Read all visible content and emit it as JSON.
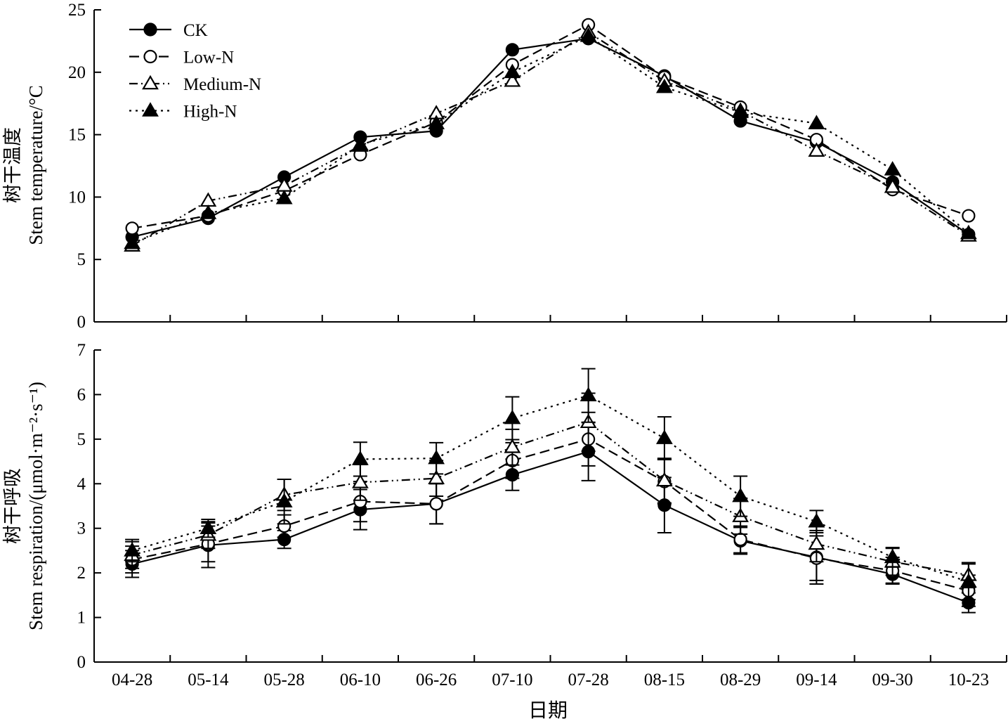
{
  "chart_data": [
    {
      "type": "line",
      "ylabel_cn": "树干温度",
      "ylabel": "Stem temperature/°C",
      "ylim": [
        0,
        25
      ],
      "yticks": [
        0,
        5,
        10,
        15,
        20,
        25
      ],
      "categories": [
        "04-28",
        "05-14",
        "05-28",
        "06-10",
        "06-26",
        "07-10",
        "07-28",
        "08-15",
        "08-29",
        "09-14",
        "09-30",
        "10-23"
      ],
      "legend_position": "top-left",
      "series": [
        {
          "name": "CK",
          "values": [
            6.8,
            8.3,
            11.6,
            14.8,
            15.3,
            21.8,
            22.7,
            19.7,
            16.1,
            14.4,
            11.2,
            7.0
          ]
        },
        {
          "name": "Low-N",
          "values": [
            7.5,
            8.5,
            10.5,
            13.4,
            16.0,
            20.6,
            23.8,
            19.6,
            17.2,
            14.6,
            10.6,
            8.5
          ]
        },
        {
          "name": "Medium-N",
          "values": [
            6.1,
            9.7,
            10.9,
            14.1,
            16.7,
            19.3,
            23.2,
            19.3,
            16.9,
            13.7,
            10.8,
            6.9
          ]
        },
        {
          "name": "High-N",
          "values": [
            6.3,
            8.7,
            9.9,
            14.2,
            15.9,
            20.0,
            22.9,
            18.8,
            16.8,
            15.9,
            12.2,
            7.1
          ]
        }
      ]
    },
    {
      "type": "line",
      "ylabel_cn": "树干呼吸",
      "ylabel": "Stem respiration/(μmol·m⁻²·s⁻¹)",
      "ylim": [
        0,
        7
      ],
      "yticks": [
        0,
        1,
        2,
        3,
        4,
        5,
        6,
        7
      ],
      "xlabel": "日期",
      "categories": [
        "04-28",
        "05-14",
        "05-28",
        "06-10",
        "06-26",
        "07-10",
        "07-28",
        "08-15",
        "08-29",
        "09-14",
        "09-30",
        "10-23"
      ],
      "series": [
        {
          "name": "CK",
          "values": [
            2.2,
            2.62,
            2.75,
            3.42,
            3.55,
            4.2,
            4.72,
            3.52,
            2.72,
            2.35,
            1.97,
            1.33
          ],
          "errors": [
            0.3,
            0.5,
            0.2,
            0.45,
            0.45,
            0.35,
            0.65,
            0.62,
            0.3,
            0.6,
            0.2,
            0.22
          ]
        },
        {
          "name": "Low-N",
          "values": [
            2.3,
            2.65,
            3.05,
            3.6,
            3.55,
            4.52,
            5.0,
            4.05,
            2.75,
            2.33,
            2.05,
            1.6
          ],
          "errors": [
            0.3,
            0.4,
            0.25,
            0.45,
            0.45,
            0.4,
            0.6,
            0.5,
            0.3,
            0.5,
            0.3,
            0.35
          ]
        },
        {
          "name": "Medium-N",
          "values": [
            2.4,
            2.85,
            3.75,
            4.03,
            4.12,
            4.82,
            5.38,
            4.07,
            3.27,
            2.65,
            2.25,
            1.95
          ],
          "errors": [
            0.3,
            0.3,
            0.35,
            0.4,
            0.4,
            0.4,
            0.65,
            0.5,
            0.4,
            0.4,
            0.3,
            0.28
          ]
        },
        {
          "name": "High-N",
          "values": [
            2.5,
            3.0,
            3.6,
            4.55,
            4.57,
            5.47,
            5.98,
            5.02,
            3.72,
            3.15,
            2.35,
            1.8
          ],
          "errors": [
            0.25,
            0.2,
            0.5,
            0.38,
            0.35,
            0.48,
            0.6,
            0.48,
            0.45,
            0.25,
            0.22,
            0.4
          ]
        }
      ]
    }
  ]
}
